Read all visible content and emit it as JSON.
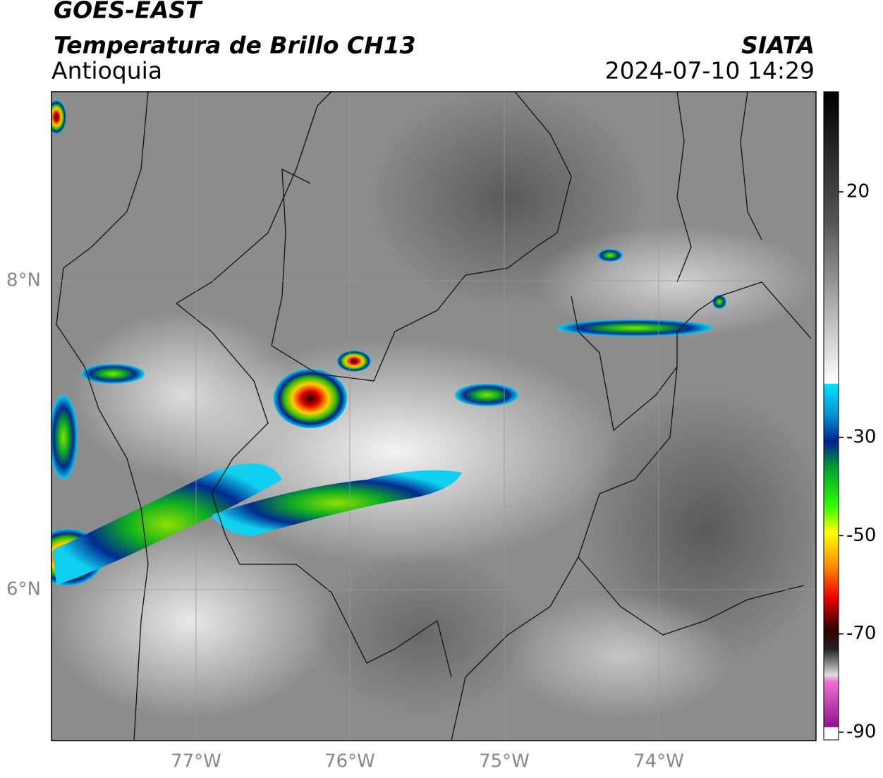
{
  "header": {
    "satellite": "GOES-EAST",
    "product": "Temperatura de Brillo CH13",
    "region": "Antioquia",
    "organization": "SIATA",
    "datetime": "2024-07-10 14:29"
  },
  "map": {
    "lat_labels": [
      "8°N",
      "6°N"
    ],
    "lon_labels": [
      "77°W",
      "76°W",
      "75°W",
      "74°W"
    ]
  },
  "colorbar": {
    "ticks": [
      20,
      -30,
      -50,
      -70,
      -90
    ]
  }
}
